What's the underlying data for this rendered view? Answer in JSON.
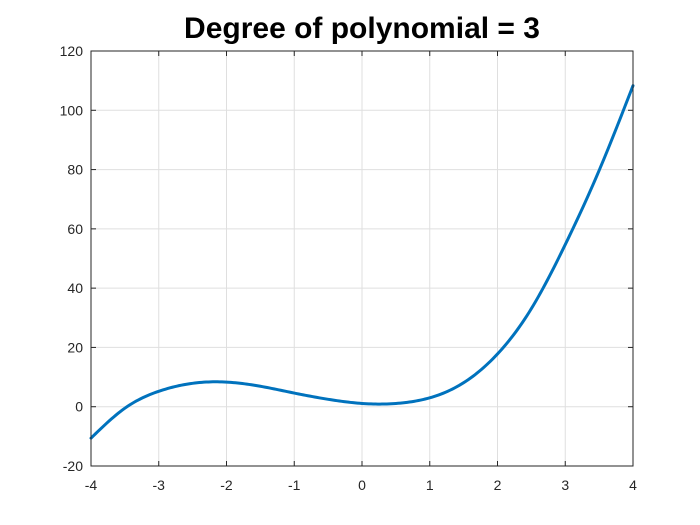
{
  "chart_data": {
    "type": "line",
    "title": "Degree of polynomial = 3",
    "xlabel": "",
    "ylabel": "",
    "xlim": [
      -4,
      4
    ],
    "ylim": [
      -20,
      120
    ],
    "x_ticks": [
      -4,
      -3,
      -2,
      -1,
      0,
      1,
      2,
      3,
      4
    ],
    "y_ticks": [
      -20,
      0,
      20,
      40,
      60,
      80,
      100,
      120
    ],
    "x_tick_labels": [
      "-4",
      "-3",
      "-2",
      "-1",
      "0",
      "1",
      "2",
      "3",
      "4"
    ],
    "y_tick_labels": [
      "-20",
      "0",
      "20",
      "40",
      "60",
      "80",
      "100",
      "120"
    ],
    "grid": true,
    "series": [
      {
        "color": "#0072bd",
        "x": [
          -4,
          -3.5,
          -3,
          -2.5,
          -2.2,
          -2,
          -1.5,
          -1,
          -0.5,
          0,
          0.3,
          0.5,
          1,
          1.5,
          2,
          2.5,
          3,
          3.5,
          4
        ],
        "y": [
          -10.6,
          -0.5,
          5.2,
          7.9,
          8.4,
          8.3,
          6.9,
          4.6,
          2.5,
          1.1,
          0.9,
          1.1,
          3.0,
          8.1,
          17.8,
          33.1,
          54.7,
          79.7,
          108.3
        ]
      }
    ]
  }
}
